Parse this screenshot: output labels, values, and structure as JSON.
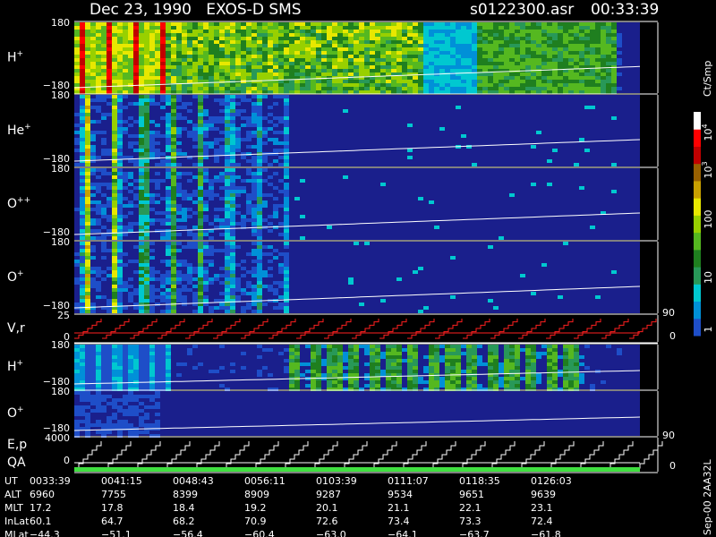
{
  "header": {
    "title": "Dec 23, 1990   EXOS-D SMS",
    "file": "s0122300.asr",
    "time": "00:33:39"
  },
  "panels": [
    {
      "label": {
        "base": "H",
        "sup": "+"
      },
      "ticks": [
        "180",
        "−180"
      ]
    },
    {
      "label": {
        "base": "He",
        "sup": "+"
      },
      "ticks": [
        "180",
        "−180"
      ]
    },
    {
      "label": {
        "base": "O",
        "sup": "++"
      },
      "ticks": [
        "180",
        "−180"
      ]
    },
    {
      "label": {
        "base": "O",
        "sup": "+"
      },
      "ticks": [
        "180",
        "−180"
      ]
    },
    {
      "label": {
        "base": "V,r",
        "sup": ""
      },
      "ticks": [
        "25",
        "0"
      ],
      "right_ticks": [
        "90",
        "0"
      ]
    },
    {
      "label": {
        "base": "H",
        "sup": "+"
      },
      "ticks": [
        "180",
        "−180"
      ]
    },
    {
      "label": {
        "base": "O",
        "sup": "+"
      },
      "ticks": [
        "180",
        "−180"
      ]
    },
    {
      "label": {
        "base": "E,p",
        "sup": ""
      },
      "label2": "QA",
      "ticks": [
        "4000",
        "0"
      ],
      "right_ticks": [
        "90",
        "0"
      ]
    }
  ],
  "colorbar": {
    "unit": "Ct/Smp",
    "labels": [
      {
        "base": "10",
        "sup": "4"
      },
      {
        "base": "10",
        "sup": "3"
      },
      {
        "base": "100",
        "sup": ""
      },
      {
        "base": "10",
        "sup": ""
      },
      {
        "base": "1",
        "sup": ""
      }
    ]
  },
  "footer_note": "Sep-00 2AA32L",
  "table": {
    "rows": [
      [
        "UT",
        "0033:39",
        "0041:15",
        "0048:43",
        "0056:11",
        "0103:39",
        "0111:07",
        "0118:35",
        "0126:03"
      ],
      [
        "ALT",
        "6960",
        "7755",
        "8399",
        "8909",
        "9287",
        "9534",
        "9651",
        "9639"
      ],
      [
        "MLT",
        "17.2",
        "17.8",
        "18.4",
        "19.2",
        "20.1",
        "21.1",
        "22.1",
        "23.1"
      ],
      [
        "InLat",
        "60.1",
        "64.7",
        "68.2",
        "70.9",
        "72.6",
        "73.4",
        "73.3",
        "72.4"
      ],
      [
        "MLat",
        "−44.3",
        "−51.1",
        "−56.4",
        "−60.4",
        "−63.0",
        "−64.1",
        "−63.7",
        "−61.8"
      ]
    ]
  }
}
